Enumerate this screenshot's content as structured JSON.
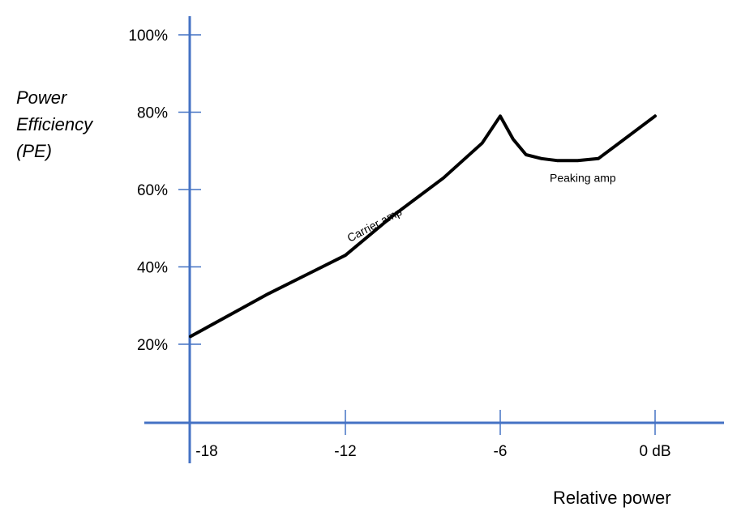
{
  "chart_data": {
    "type": "line",
    "title": "",
    "ylabel": [
      "Power",
      "Efficiency",
      "(PE)"
    ],
    "xlabel": "Relative power",
    "x_tick_labels": [
      "-18",
      "-12",
      "-6",
      "0 dB"
    ],
    "x_ticks": [
      -18,
      -12,
      -6,
      0
    ],
    "y_tick_labels": [
      "20%",
      "40%",
      "60%",
      "80%",
      "100%"
    ],
    "y_ticks": [
      20,
      40,
      60,
      80,
      100
    ],
    "xlim": [
      -19.8,
      2.6
    ],
    "ylim": [
      0,
      100
    ],
    "grid": false,
    "series": [
      {
        "points": [
          [
            -18,
            22
          ],
          [
            -15,
            33
          ],
          [
            -12,
            43
          ],
          [
            -10.2,
            53
          ],
          [
            -8.2,
            63
          ],
          [
            -6.7,
            72
          ],
          [
            -6,
            79
          ],
          [
            -5.5,
            73
          ],
          [
            -5.0,
            69
          ],
          [
            -4.4,
            68
          ],
          [
            -3.8,
            67.5
          ],
          [
            -3.0,
            67.5
          ],
          [
            -2.2,
            68
          ],
          [
            -1.8,
            70
          ],
          [
            0,
            79
          ]
        ]
      }
    ],
    "annotations": [
      {
        "text": "Carrier amp",
        "x": -10.8,
        "y": 50,
        "angle": -28
      },
      {
        "text": "Peaking amp",
        "x": -2.8,
        "y": 62,
        "angle": 0
      }
    ],
    "colors": {
      "axis": "#4472c4",
      "line": "#000000"
    }
  }
}
